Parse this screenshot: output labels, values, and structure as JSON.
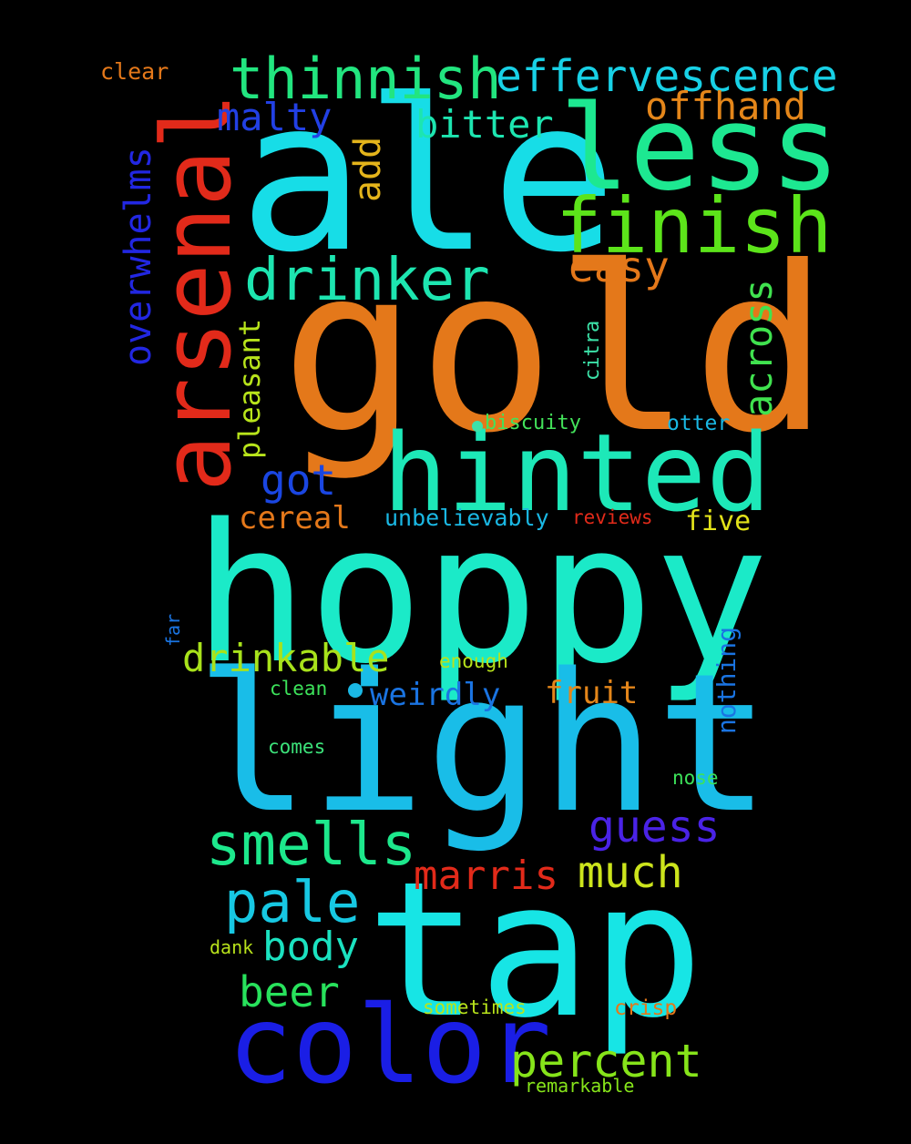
{
  "words": [
    {
      "key": "ale",
      "text": "ale",
      "color": "#17dde7"
    },
    {
      "key": "gold",
      "text": "gold",
      "color": "#e4781a"
    },
    {
      "key": "hoppy",
      "text": "hoppy",
      "color": "#1beac8"
    },
    {
      "key": "light",
      "text": "light",
      "color": "#19bde8"
    },
    {
      "key": "tap",
      "text": "tap",
      "color": "#17e5e5"
    },
    {
      "key": "hinted",
      "text": "hinted",
      "color": "#1de8b8"
    },
    {
      "key": "less",
      "text": "less",
      "color": "#1de891"
    },
    {
      "key": "arsenal",
      "text": "arsenal",
      "color": "#e22a1a"
    },
    {
      "key": "color",
      "text": "color",
      "color": "#1a1ee5"
    },
    {
      "key": "finish",
      "text": "finish",
      "color": "#5ce41a"
    },
    {
      "key": "thinnish",
      "text": "thinnish",
      "color": "#22e57f"
    },
    {
      "key": "effervescence",
      "text": "effervescence",
      "color": "#18d1e6"
    },
    {
      "key": "drinker",
      "text": "drinker",
      "color": "#1de5b0"
    },
    {
      "key": "smells",
      "text": "smells",
      "color": "#1de88c"
    },
    {
      "key": "pale",
      "text": "pale",
      "color": "#17c8e3"
    },
    {
      "key": "percent",
      "text": "percent",
      "color": "#86e41a"
    },
    {
      "key": "guess",
      "text": "guess",
      "color": "#4a23e6"
    },
    {
      "key": "much",
      "text": "much",
      "color": "#cce41c"
    },
    {
      "key": "marris",
      "text": "marris",
      "color": "#e22a1a"
    },
    {
      "key": "drinkable",
      "text": "drinkable",
      "color": "#a8e21b"
    },
    {
      "key": "body",
      "text": "body",
      "color": "#1be2c0"
    },
    {
      "key": "beer",
      "text": "beer",
      "color": "#28e25c"
    },
    {
      "key": "malty",
      "text": "malty",
      "color": "#2240e4"
    },
    {
      "key": "bitter",
      "text": "bitter",
      "color": "#1de5b0"
    },
    {
      "key": "offhand",
      "text": "offhand",
      "color": "#e4861a"
    },
    {
      "key": "easy",
      "text": "easy",
      "color": "#e4781a"
    },
    {
      "key": "got",
      "text": "got",
      "color": "#1a46e2"
    },
    {
      "key": "across",
      "text": "across",
      "color": "#40e24f"
    },
    {
      "key": "overwhelms",
      "text": "overwhelms",
      "color": "#2227e2"
    },
    {
      "key": "add",
      "text": "add",
      "color": "#e4b41b"
    },
    {
      "key": "pleasant",
      "text": "pleasant",
      "color": "#b8e41b"
    },
    {
      "key": "cereal",
      "text": "cereal",
      "color": "#e4781a"
    },
    {
      "key": "weirdly",
      "text": "weirdly",
      "color": "#1a74e2"
    },
    {
      "key": "fruit",
      "text": "fruit",
      "color": "#e4861a"
    },
    {
      "key": "five",
      "text": "five",
      "color": "#e2e21a"
    },
    {
      "key": "unbelievably",
      "text": "unbelievably",
      "color": "#1ab8e4"
    },
    {
      "key": "nothing",
      "text": "nothing",
      "color": "#1a74e2"
    },
    {
      "key": "clear",
      "text": "clear",
      "color": "#e4781a"
    },
    {
      "key": "biscuity",
      "text": "biscuity",
      "color": "#43e25a"
    },
    {
      "key": "otter",
      "text": "otter",
      "color": "#1ab8e4"
    },
    {
      "key": "citra",
      "text": "citra",
      "color": "#3ce2a8"
    },
    {
      "key": "reviews",
      "text": "reviews",
      "color": "#e22a1a"
    },
    {
      "key": "enough",
      "text": "enough",
      "color": "#b8e21b"
    },
    {
      "key": "clean",
      "text": "clean",
      "color": "#3ce25a"
    },
    {
      "key": "comes",
      "text": "comes",
      "color": "#3ce27a"
    },
    {
      "key": "nose",
      "text": "nose",
      "color": "#3ce25a"
    },
    {
      "key": "dank",
      "text": "dank",
      "color": "#b8e21b"
    },
    {
      "key": "sometimes",
      "text": "sometimes",
      "color": "#b8e41b"
    },
    {
      "key": "crisp",
      "text": "crisp",
      "color": "#e4781a"
    },
    {
      "key": "remarkable",
      "text": "remarkable",
      "color": "#86e41a"
    },
    {
      "key": "far",
      "text": "far",
      "color": "#1a74e2"
    }
  ],
  "dots": [
    {
      "key": "dot-a",
      "color": "#3ce2a8"
    },
    {
      "key": "dot-b",
      "color": "#1ab8e4"
    }
  ]
}
